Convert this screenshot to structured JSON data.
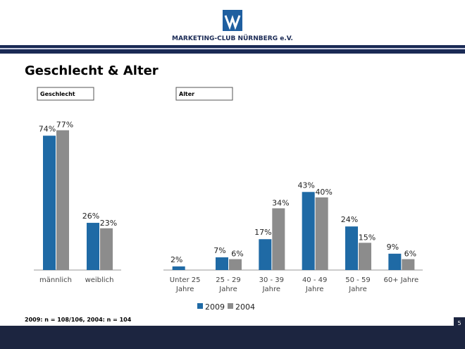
{
  "header": {
    "org": "MARKETING-CLUB NÜRNBERG e.V."
  },
  "title": "Geschlecht & Alter",
  "chart_data": [
    {
      "type": "bar",
      "title": "Geschlecht",
      "categories": [
        "männlich",
        "weiblich"
      ],
      "series": [
        {
          "name": "2009",
          "color": "#1f6aa5",
          "values": [
            74,
            26
          ],
          "value_labels": [
            "74%",
            "26%"
          ]
        },
        {
          "name": "2004",
          "color": "#8c8c8c",
          "values": [
            77,
            23
          ],
          "value_labels": [
            "77%",
            "23%"
          ]
        }
      ],
      "ylim": [
        0,
        80
      ]
    },
    {
      "type": "bar",
      "title": "Alter",
      "categories": [
        "Unter 25 Jahre",
        "25 - 29 Jahre",
        "30 - 39 Jahre",
        "40 - 49 Jahre",
        "50 - 59 Jahre",
        "60+ Jahre"
      ],
      "series": [
        {
          "name": "2009",
          "color": "#1f6aa5",
          "values": [
            2,
            7,
            17,
            43,
            24,
            9
          ],
          "value_labels": [
            "2%",
            "7%",
            "17%",
            "43%",
            "24%",
            "9%"
          ]
        },
        {
          "name": "2004",
          "color": "#8c8c8c",
          "values": [
            null,
            6,
            34,
            40,
            15,
            6
          ],
          "value_labels": [
            null,
            "6%",
            "34%",
            "40%",
            "15%",
            "6%"
          ]
        }
      ],
      "ylim": [
        0,
        80
      ]
    }
  ],
  "footnote": "2009: n = 108/106, 2004: n = 104",
  "page_number": "5"
}
